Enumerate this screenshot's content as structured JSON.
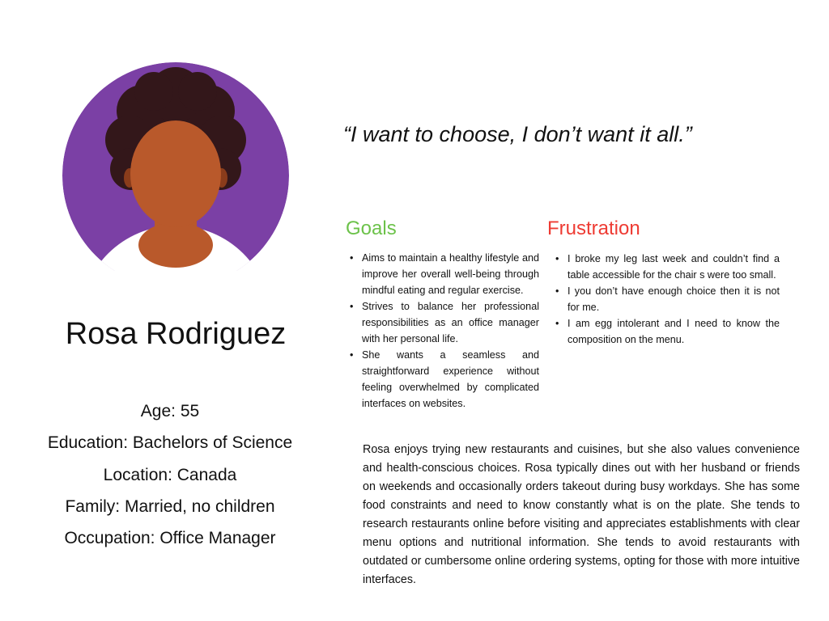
{
  "persona": {
    "name": "Rosa Rodriguez",
    "age": "Age: 55",
    "education": "Education: Bachelors of Science",
    "location": "Location: Canada",
    "family": "Family: Married, no children",
    "occupation": "Occupation: Office Manager"
  },
  "quote": "“I want to choose, I don’t want it all.”",
  "goals": {
    "title": "Goals",
    "items": [
      "Aims to maintain a healthy lifestyle and improve her overall well-being through mindful eating and regular exercise.",
      "Strives to balance her professional responsibilities as an office manager with her personal life.",
      "She wants a seamless and straightforward experience without feeling overwhelmed by complicated interfaces on websites."
    ]
  },
  "frustration": {
    "title": "Frustration",
    "items": [
      "I broke my leg last week and couldn’t find a table accessible for the chair s were too small.",
      "I you don’t have enough choice then it is not for me.",
      "I am egg intolerant and I need to know the composition on the menu."
    ]
  },
  "bio": "Rosa enjoys trying new restaurants and cuisines, but she also values convenience and health-conscious choices. Rosa typically dines out with her husband or friends on weekends and occasionally orders takeout during busy workdays. She has some food constraints and need to know constantly what is on the plate. She tends to research restaurants online before visiting and appreciates establishments with clear menu options and nutritional information. She tends to avoid restaurants with outdated or cumbersome online ordering systems, opting for those with more intuitive interfaces.",
  "colors": {
    "avatar_bg": "#7b40a5",
    "hair": "#33171a",
    "skin": "#b9592b",
    "goals_title": "#6cc24a",
    "frustration_title": "#ee3b33"
  },
  "icons": {
    "avatar": "woman-avatar-illustration"
  }
}
